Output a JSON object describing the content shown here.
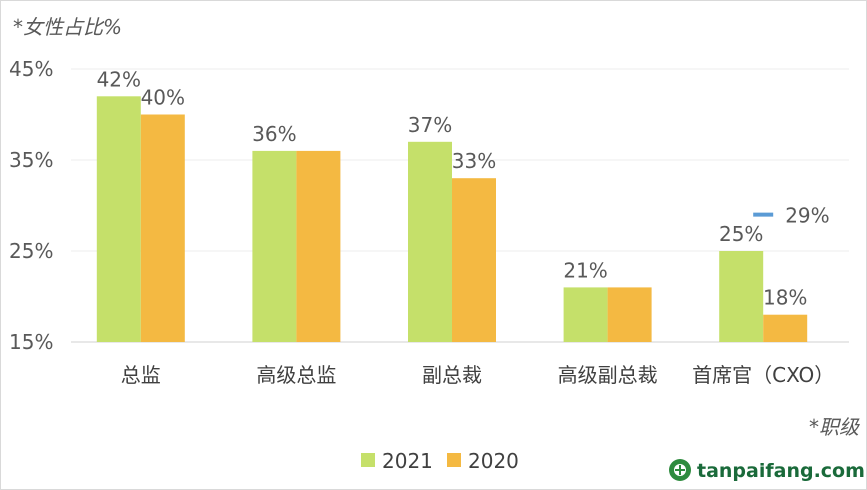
{
  "chart_data": {
    "type": "bar",
    "ylabel": "*女性占比%",
    "xlabel": "*职级",
    "ylim": [
      15,
      45
    ],
    "yticks": [
      "45%",
      "35%",
      "25%",
      "15%"
    ],
    "ytick_values": [
      45,
      35,
      25,
      15
    ],
    "grid": true,
    "legend_position": "bottom",
    "categories": [
      "总监",
      "高级总监",
      "副总裁",
      "高级副总裁",
      "首席官（CXO）"
    ],
    "series": [
      {
        "name": "2021",
        "color": "#c5e06a",
        "values": [
          42,
          36,
          37,
          21,
          25
        ],
        "labels": [
          "42%",
          "36%",
          "37%",
          "21%",
          "25%"
        ]
      },
      {
        "name": "2020",
        "color": "#f4b942",
        "values": [
          40,
          36,
          33,
          21,
          18
        ],
        "labels": [
          "40%",
          "",
          "33%",
          "",
          "18%"
        ]
      }
    ],
    "annotations": [
      {
        "label": "29%",
        "category": "首席官（CXO）",
        "value": 29,
        "color": "#5b9bd5"
      }
    ]
  },
  "watermark": {
    "text": "tanpaifang.com",
    "icon": "leaf-logo-icon"
  }
}
